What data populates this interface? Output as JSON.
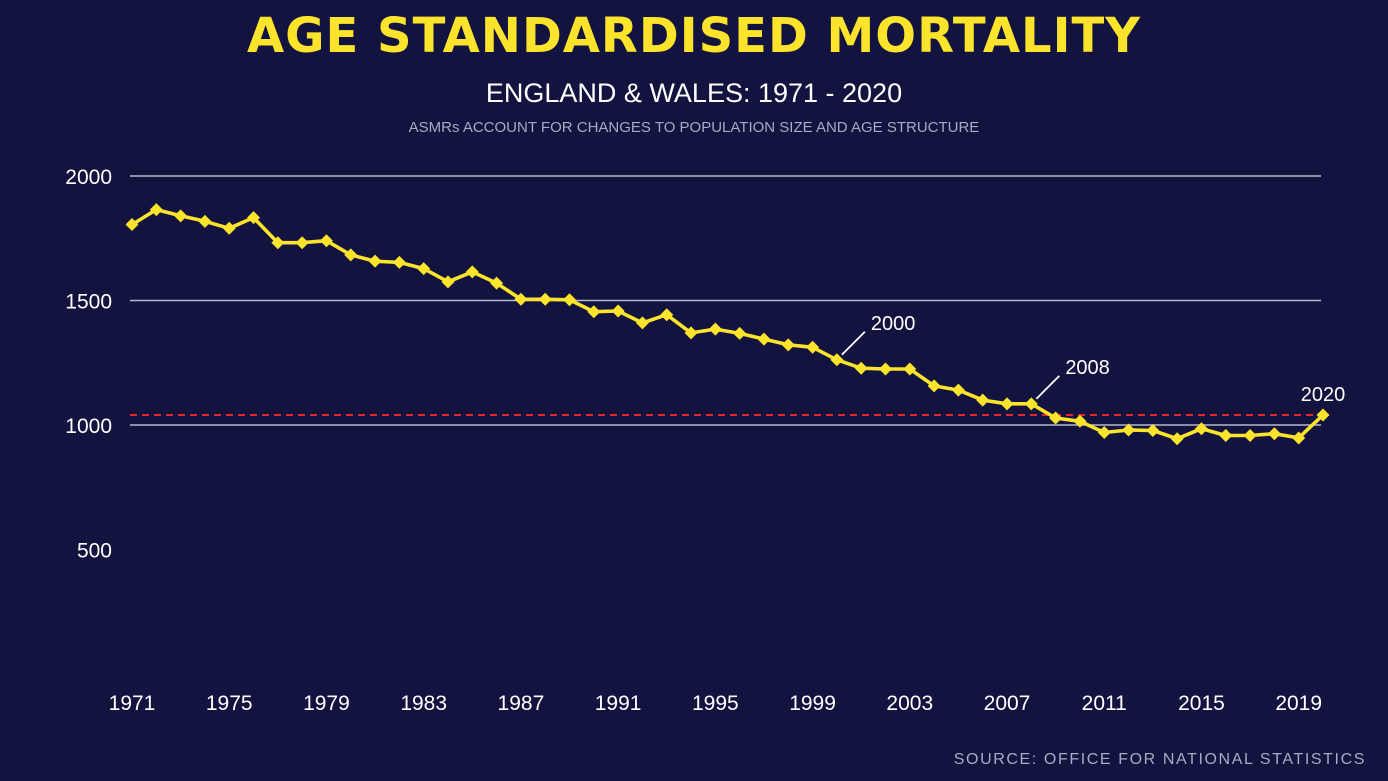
{
  "chart_data": {
    "type": "line",
    "title": "AGE STANDARDISED MORTALITY",
    "subtitle": "ENGLAND & WALES: 1971 - 2020",
    "note": "ASMRs ACCOUNT FOR CHANGES TO POPULATION SIZE AND AGE STRUCTURE",
    "source": "SOURCE: OFFICE FOR NATIONAL STATISTICS",
    "ylim": [
      0,
      2000
    ],
    "yticks": [
      500,
      1000,
      1500,
      2000
    ],
    "gridlines": [
      1000,
      1500,
      2000
    ],
    "xlim": [
      1971,
      2020
    ],
    "xticks": [
      1971,
      1975,
      1979,
      1983,
      1987,
      1991,
      1995,
      1999,
      2003,
      2007,
      2011,
      2015,
      2019
    ],
    "reference_line": {
      "y": 1040,
      "style": "dashed",
      "color": "#e8262a"
    },
    "series": [
      {
        "color": "#fce32c",
        "x": [
          1971,
          1972,
          1973,
          1974,
          1975,
          1976,
          1977,
          1978,
          1979,
          1980,
          1981,
          1982,
          1983,
          1984,
          1985,
          1986,
          1987,
          1988,
          1989,
          1990,
          1991,
          1992,
          1993,
          1994,
          1995,
          1996,
          1997,
          1998,
          1999,
          2000,
          2001,
          2002,
          2003,
          2004,
          2005,
          2006,
          2007,
          2008,
          2009,
          2010,
          2011,
          2012,
          2013,
          2014,
          2015,
          2016,
          2017,
          2018,
          2019,
          2020
        ],
        "values": [
          1805,
          1865,
          1840,
          1818,
          1790,
          1833,
          1732,
          1732,
          1740,
          1683,
          1658,
          1653,
          1628,
          1575,
          1615,
          1570,
          1505,
          1505,
          1503,
          1455,
          1458,
          1410,
          1443,
          1370,
          1385,
          1368,
          1345,
          1322,
          1312,
          1262,
          1228,
          1225,
          1225,
          1157,
          1140,
          1100,
          1085,
          1085,
          1028,
          1015,
          970,
          980,
          978,
          945,
          985,
          958,
          958,
          965,
          948,
          1040
        ]
      }
    ],
    "annotations": [
      {
        "label": "2000",
        "x": 2000
      },
      {
        "label": "2008",
        "x": 2008
      },
      {
        "label": "2020",
        "x": 2020
      }
    ]
  }
}
